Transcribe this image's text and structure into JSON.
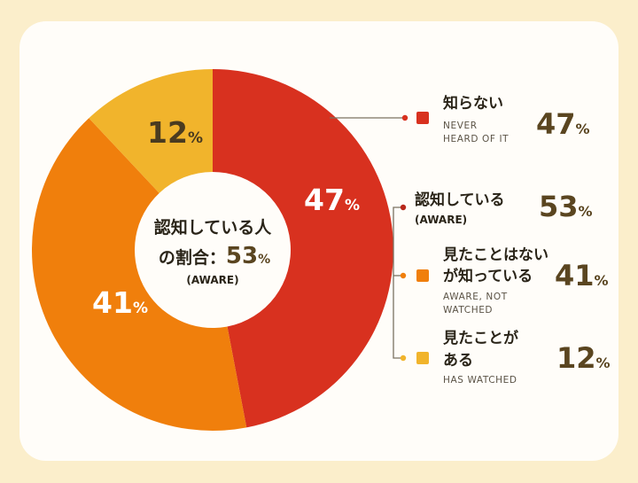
{
  "colors": {
    "never": "#d8311f",
    "aware": "#b8281a",
    "aware_not_watched": "#f07f0c",
    "watched": "#f1b42c",
    "connector": "#7a7262"
  },
  "center": {
    "line1": "認知している人",
    "line2": "の割合：",
    "value": "53",
    "pct": "%",
    "sub": "(AWARE)"
  },
  "slice_labels": {
    "never": "47",
    "aware_not_watched": "41",
    "watched": "12",
    "pct": "%"
  },
  "legend": {
    "never": {
      "title": "知らない",
      "sub1": "NEVER",
      "sub2": "HEARD OF IT",
      "value": "47",
      "pct": "%"
    },
    "aware": {
      "title": "認知している",
      "sub1": "(AWARE)",
      "value": "53",
      "pct": "%"
    },
    "aware_not_watched": {
      "title1": "見たことはない",
      "title2": "が知っている",
      "sub1": "AWARE, NOT",
      "sub2": "WATCHED",
      "value": "41",
      "pct": "%"
    },
    "watched": {
      "title1": "見たことが",
      "title2": "ある",
      "sub1": "HAS WATCHED",
      "value": "12",
      "pct": "%"
    }
  },
  "chart_data": {
    "type": "pie",
    "categories": [
      "知らない",
      "見たことはないが知っている",
      "見たことがある"
    ],
    "values": [
      47,
      41,
      12
    ],
    "title": "",
    "legend": "right"
  }
}
